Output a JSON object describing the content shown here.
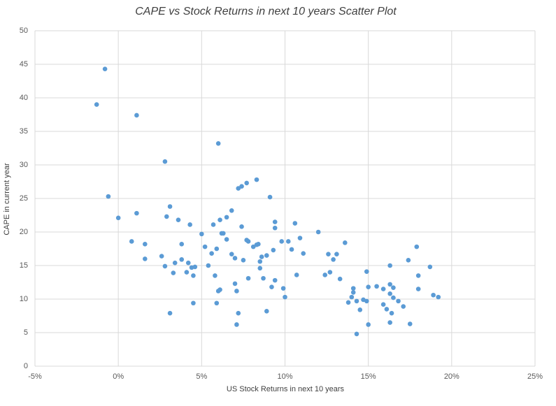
{
  "chart_data": {
    "type": "scatter",
    "title": "CAPE vs Stock Returns in next 10 years Scatter Plot",
    "x_label": "US Stock Returns in next 10 years",
    "y_label": "CAPE in current year",
    "color": "#5b9bd5",
    "grid": true,
    "xlim": [
      -5,
      25
    ],
    "ylim": [
      0,
      50
    ],
    "xticks": [
      {
        "value": -5,
        "label": "-5%"
      },
      {
        "value": 0,
        "label": "0%"
      },
      {
        "value": 5,
        "label": "5%"
      },
      {
        "value": 10,
        "label": "10%"
      },
      {
        "value": 15,
        "label": "15%"
      },
      {
        "value": 20,
        "label": "20%"
      },
      {
        "value": 25,
        "label": "25%"
      }
    ],
    "yticks": [
      0,
      5,
      10,
      15,
      20,
      25,
      30,
      35,
      40,
      45,
      50
    ],
    "x": [
      -1.3,
      -0.8,
      -0.6,
      0.0,
      1.1,
      1.1,
      0.8,
      1.6,
      1.6,
      2.8,
      2.6,
      2.8,
      2.9,
      3.1,
      3.1,
      3.6,
      3.4,
      3.3,
      3.8,
      3.8,
      4.1,
      4.2,
      4.3,
      4.4,
      4.6,
      4.5,
      4.5,
      5.0,
      5.2,
      5.4,
      5.6,
      5.7,
      5.8,
      5.9,
      6.0,
      5.9,
      6.0,
      6.1,
      6.1,
      6.2,
      6.3,
      6.5,
      6.5,
      6.8,
      6.8,
      7.0,
      7.0,
      7.1,
      7.2,
      7.1,
      7.2,
      7.4,
      7.4,
      7.5,
      7.7,
      7.7,
      7.8,
      7.8,
      8.1,
      8.3,
      8.4,
      8.3,
      8.5,
      8.6,
      8.5,
      8.7,
      8.9,
      8.9,
      9.1,
      9.3,
      9.2,
      9.4,
      9.4,
      9.4,
      9.8,
      9.9,
      10.0,
      10.2,
      10.4,
      10.6,
      10.7,
      10.9,
      11.1,
      12.0,
      12.4,
      12.6,
      12.7,
      12.9,
      13.1,
      13.3,
      13.6,
      13.8,
      14.0,
      14.1,
      14.1,
      14.3,
      14.3,
      14.5,
      14.7,
      14.9,
      14.9,
      15.0,
      15.0,
      15.5,
      15.9,
      15.9,
      16.1,
      16.3,
      16.3,
      16.5,
      16.3,
      16.4,
      16.3,
      16.5,
      16.8,
      17.1,
      17.4,
      17.5,
      17.9,
      18.0,
      18.0,
      18.7,
      18.9,
      19.2
    ],
    "values": [
      39.0,
      44.3,
      25.3,
      22.1,
      37.4,
      22.8,
      18.6,
      18.2,
      16.0,
      30.5,
      16.4,
      14.9,
      22.3,
      23.8,
      7.9,
      21.8,
      15.4,
      13.9,
      18.2,
      15.9,
      14.0,
      15.4,
      21.1,
      14.7,
      14.8,
      13.5,
      9.4,
      19.7,
      17.8,
      15.0,
      16.8,
      21.1,
      13.5,
      17.5,
      11.2,
      9.4,
      33.2,
      11.4,
      21.8,
      19.8,
      19.8,
      18.9,
      22.2,
      23.2,
      16.7,
      16.1,
      12.3,
      11.2,
      7.9,
      6.2,
      26.5,
      26.8,
      20.8,
      15.8,
      27.3,
      18.8,
      18.6,
      13.1,
      17.8,
      18.1,
      18.2,
      27.8,
      15.6,
      16.3,
      14.6,
      13.1,
      16.5,
      8.2,
      25.2,
      17.3,
      11.8,
      21.5,
      20.6,
      12.8,
      18.6,
      11.6,
      10.3,
      18.6,
      17.4,
      21.3,
      13.6,
      19.1,
      16.8,
      20.0,
      13.6,
      16.7,
      14.0,
      15.9,
      16.7,
      13.0,
      18.4,
      9.5,
      10.3,
      11.6,
      11.0,
      9.7,
      4.8,
      8.4,
      9.9,
      9.7,
      14.1,
      11.8,
      6.2,
      11.9,
      11.5,
      9.2,
      8.5,
      15.0,
      12.2,
      11.7,
      10.8,
      7.9,
      6.5,
      10.2,
      9.7,
      8.9,
      15.8,
      6.3,
      17.8,
      13.5,
      11.5,
      14.8,
      10.6,
      10.3
    ]
  }
}
